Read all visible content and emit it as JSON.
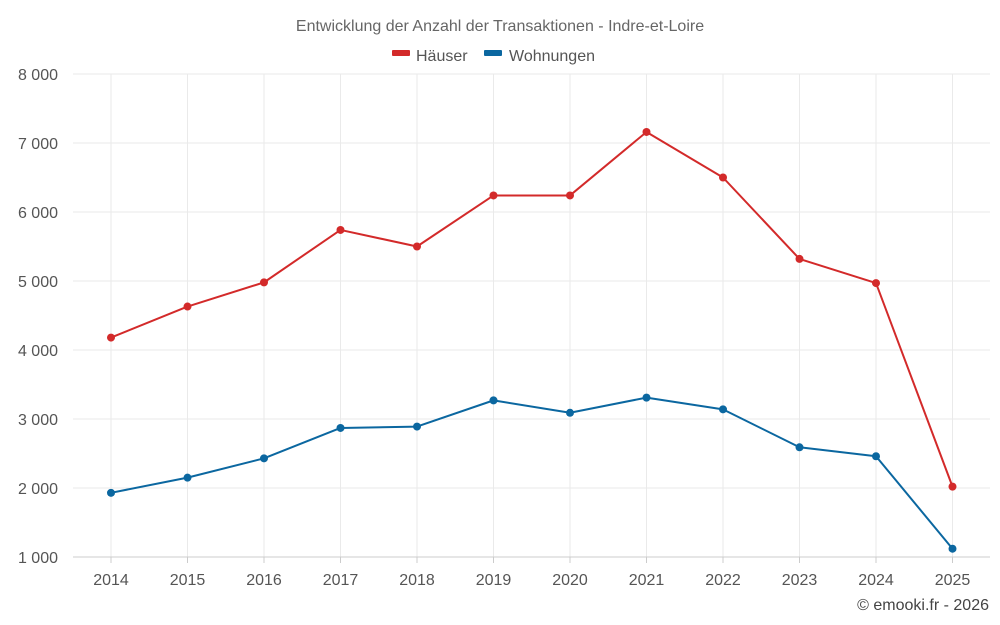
{
  "chart_data": {
    "type": "line",
    "title": "Entwicklung der Anzahl der Transaktionen - Indre-et-Loire",
    "xlabel": "",
    "ylabel": "",
    "categories": [
      "2014",
      "2015",
      "2016",
      "2017",
      "2018",
      "2019",
      "2020",
      "2021",
      "2022",
      "2023",
      "2024",
      "2025"
    ],
    "ylim": [
      1000,
      8000
    ],
    "yticks": [
      1000,
      2000,
      3000,
      4000,
      5000,
      6000,
      7000,
      8000
    ],
    "ytick_labels": [
      "1 000",
      "2 000",
      "3 000",
      "4 000",
      "5 000",
      "6 000",
      "7 000",
      "8 000"
    ],
    "grid": true,
    "legend_position": "top-center",
    "series": [
      {
        "name": "Häuser",
        "color": "#d32a2a",
        "values": [
          4180,
          4630,
          4980,
          5740,
          5500,
          6240,
          6240,
          7160,
          6500,
          5320,
          4970,
          2020
        ]
      },
      {
        "name": "Wohnungen",
        "color": "#0b67a0",
        "values": [
          1930,
          2150,
          2430,
          2870,
          2890,
          3270,
          3090,
          3310,
          3140,
          2590,
          2460,
          1120
        ]
      }
    ]
  },
  "credit": "© emooki.fr - 2026"
}
